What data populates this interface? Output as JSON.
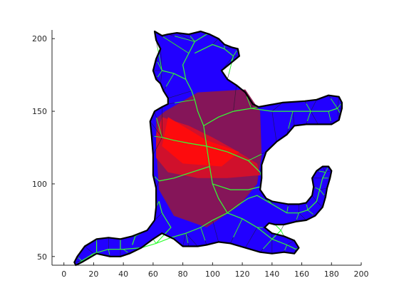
{
  "chart_data": {
    "type": "scatter",
    "subtype": "triangulated-shape-with-medial-axis",
    "title": "",
    "xlabel": "",
    "ylabel": "",
    "xlim": [
      -8,
      200
    ],
    "ylim": [
      44,
      206
    ],
    "grid": false,
    "legend": "none",
    "x_ticks": [
      0,
      20,
      40,
      60,
      80,
      100,
      120,
      140,
      160,
      180,
      200
    ],
    "y_ticks": [
      50,
      100,
      150,
      200
    ],
    "colors": {
      "outline": "#000000",
      "edge": "#1a1a2e",
      "skeleton": "#33ff33",
      "far": "#2200ff",
      "near": "#ff0000"
    },
    "boundary": [
      [
        61,
        205
      ],
      [
        66,
        202
      ],
      [
        70,
        203
      ],
      [
        76,
        204
      ],
      [
        84,
        203
      ],
      [
        92,
        205
      ],
      [
        98,
        203
      ],
      [
        104,
        200
      ],
      [
        108,
        196
      ],
      [
        113,
        194
      ],
      [
        117,
        193
      ],
      [
        118,
        188
      ],
      [
        112,
        183
      ],
      [
        106,
        178
      ],
      [
        110,
        172
      ],
      [
        116,
        168
      ],
      [
        122,
        163
      ],
      [
        127,
        155
      ],
      [
        131,
        153
      ],
      [
        147,
        156
      ],
      [
        162,
        157
      ],
      [
        170,
        158
      ],
      [
        178,
        161
      ],
      [
        185,
        160
      ],
      [
        187,
        156
      ],
      [
        187,
        152
      ],
      [
        186,
        148
      ],
      [
        185,
        144
      ],
      [
        180,
        141
      ],
      [
        171,
        141
      ],
      [
        163,
        141
      ],
      [
        155,
        140
      ],
      [
        150,
        134
      ],
      [
        143,
        129
      ],
      [
        136,
        122
      ],
      [
        133,
        113
      ],
      [
        133,
        104
      ],
      [
        132,
        96
      ],
      [
        136,
        90
      ],
      [
        140,
        88
      ],
      [
        151,
        86
      ],
      [
        158,
        86
      ],
      [
        163,
        87
      ],
      [
        167,
        92
      ],
      [
        168,
        98
      ],
      [
        167,
        104
      ],
      [
        170,
        109
      ],
      [
        174,
        112
      ],
      [
        178,
        112
      ],
      [
        180,
        109
      ],
      [
        179,
        104
      ],
      [
        177,
        97
      ],
      [
        176,
        91
      ],
      [
        174,
        84
      ],
      [
        169,
        78
      ],
      [
        163,
        75
      ],
      [
        156,
        74
      ],
      [
        148,
        72
      ],
      [
        142,
        72
      ],
      [
        138,
        73
      ],
      [
        135,
        70
      ],
      [
        140,
        66
      ],
      [
        148,
        64
      ],
      [
        155,
        61
      ],
      [
        158,
        56
      ],
      [
        155,
        52
      ],
      [
        148,
        53
      ],
      [
        140,
        52
      ],
      [
        132,
        53
      ],
      [
        122,
        56
      ],
      [
        112,
        59
      ],
      [
        104,
        60
      ],
      [
        96,
        58
      ],
      [
        90,
        57
      ],
      [
        84,
        57
      ],
      [
        80,
        57
      ],
      [
        74,
        62
      ],
      [
        66,
        66
      ],
      [
        60,
        62
      ],
      [
        52,
        56
      ],
      [
        44,
        52
      ],
      [
        38,
        50
      ],
      [
        31,
        50
      ],
      [
        22,
        52
      ],
      [
        17,
        49
      ],
      [
        12,
        46
      ],
      [
        8,
        44
      ],
      [
        7,
        46
      ],
      [
        9,
        50
      ],
      [
        14,
        57
      ],
      [
        22,
        62
      ],
      [
        30,
        63
      ],
      [
        38,
        62
      ],
      [
        46,
        64
      ],
      [
        56,
        68
      ],
      [
        61,
        75
      ],
      [
        62,
        84
      ],
      [
        62,
        97
      ],
      [
        60,
        106
      ],
      [
        60,
        120
      ],
      [
        59,
        133
      ],
      [
        58,
        143
      ],
      [
        61,
        150
      ],
      [
        66,
        153
      ],
      [
        70,
        155
      ],
      [
        70,
        159
      ],
      [
        67,
        164
      ],
      [
        65,
        169
      ],
      [
        62,
        172
      ],
      [
        60,
        178
      ],
      [
        62,
        186
      ],
      [
        65,
        193
      ],
      [
        62,
        199
      ]
    ],
    "skeleton": [
      [
        [
          30,
          55
        ],
        [
          40,
          55
        ],
        [
          52,
          56
        ],
        [
          62,
          59
        ],
        [
          72,
          63
        ],
        [
          82,
          66
        ],
        [
          92,
          70
        ],
        [
          100,
          75
        ],
        [
          110,
          80
        ]
      ],
      [
        [
          12,
          47
        ],
        [
          20,
          52
        ],
        [
          30,
          55
        ]
      ],
      [
        [
          110,
          80
        ],
        [
          120,
          76
        ],
        [
          130,
          70
        ],
        [
          140,
          62
        ],
        [
          150,
          58
        ],
        [
          156,
          55
        ]
      ],
      [
        [
          110,
          80
        ],
        [
          118,
          86
        ],
        [
          124,
          90
        ],
        [
          130,
          92
        ],
        [
          140,
          86
        ],
        [
          150,
          80
        ],
        [
          158,
          80
        ],
        [
          164,
          82
        ],
        [
          170,
          88
        ],
        [
          172,
          96
        ],
        [
          174,
          104
        ],
        [
          176,
          108
        ]
      ],
      [
        [
          110,
          80
        ],
        [
          104,
          90
        ],
        [
          100,
          100
        ],
        [
          98,
          112
        ],
        [
          96,
          126
        ],
        [
          94,
          140
        ],
        [
          90,
          150
        ],
        [
          88,
          158
        ],
        [
          86,
          164
        ],
        [
          82,
          172
        ],
        [
          80,
          182
        ],
        [
          84,
          190
        ],
        [
          88,
          198
        ],
        [
          96,
          203
        ]
      ],
      [
        [
          82,
          172
        ],
        [
          74,
          176
        ],
        [
          66,
          178
        ]
      ],
      [
        [
          88,
          190
        ],
        [
          100,
          196
        ],
        [
          108,
          193
        ],
        [
          114,
          188
        ]
      ],
      [
        [
          94,
          140
        ],
        [
          104,
          146
        ],
        [
          114,
          150
        ],
        [
          126,
          152
        ],
        [
          140,
          150
        ],
        [
          154,
          150
        ],
        [
          166,
          150
        ],
        [
          178,
          150
        ],
        [
          184,
          152
        ]
      ],
      [
        [
          96,
          126
        ],
        [
          110,
          122
        ],
        [
          124,
          116
        ],
        [
          132,
          108
        ]
      ],
      [
        [
          96,
          126
        ],
        [
          84,
          128
        ],
        [
          74,
          130
        ],
        [
          66,
          132
        ]
      ],
      [
        [
          98,
          112
        ],
        [
          86,
          108
        ],
        [
          74,
          104
        ],
        [
          64,
          102
        ]
      ],
      [
        [
          100,
          100
        ],
        [
          112,
          96
        ],
        [
          124,
          96
        ],
        [
          132,
          98
        ]
      ],
      [
        [
          62,
          59
        ],
        [
          72,
          70
        ],
        [
          66,
          80
        ],
        [
          64,
          88
        ]
      ],
      [
        [
          46,
          58
        ],
        [
          48,
          64
        ]
      ],
      [
        [
          38,
          55
        ],
        [
          38,
          62
        ]
      ],
      [
        [
          22,
          52
        ],
        [
          22,
          60
        ]
      ],
      [
        [
          140,
          62
        ],
        [
          146,
          68
        ],
        [
          142,
          72
        ]
      ]
    ],
    "fills": [
      {
        "name": "body-warm",
        "points": [
          [
            68,
            150
          ],
          [
            90,
            163
          ],
          [
            122,
            165
          ],
          [
            132,
            150
          ],
          [
            133,
            120
          ],
          [
            130,
            100
          ],
          [
            118,
            85
          ],
          [
            96,
            70
          ],
          [
            74,
            78
          ],
          [
            64,
            96
          ],
          [
            62,
            125
          ],
          [
            62,
            145
          ]
        ],
        "color": "#8b1650"
      },
      {
        "name": "body-hot",
        "points": [
          [
            66,
            146
          ],
          [
            84,
            140
          ],
          [
            100,
            132
          ],
          [
            114,
            124
          ],
          [
            130,
            114
          ],
          [
            132,
            106
          ],
          [
            110,
            104
          ],
          [
            90,
            104
          ],
          [
            70,
            108
          ],
          [
            62,
            118
          ],
          [
            62,
            134
          ]
        ],
        "color": "#d4102a"
      },
      {
        "name": "core-hot",
        "points": [
          [
            70,
            146
          ],
          [
            96,
            130
          ],
          [
            118,
            122
          ],
          [
            106,
            112
          ],
          [
            80,
            114
          ],
          [
            66,
            126
          ]
        ],
        "color": "#ff0c0c"
      }
    ]
  }
}
